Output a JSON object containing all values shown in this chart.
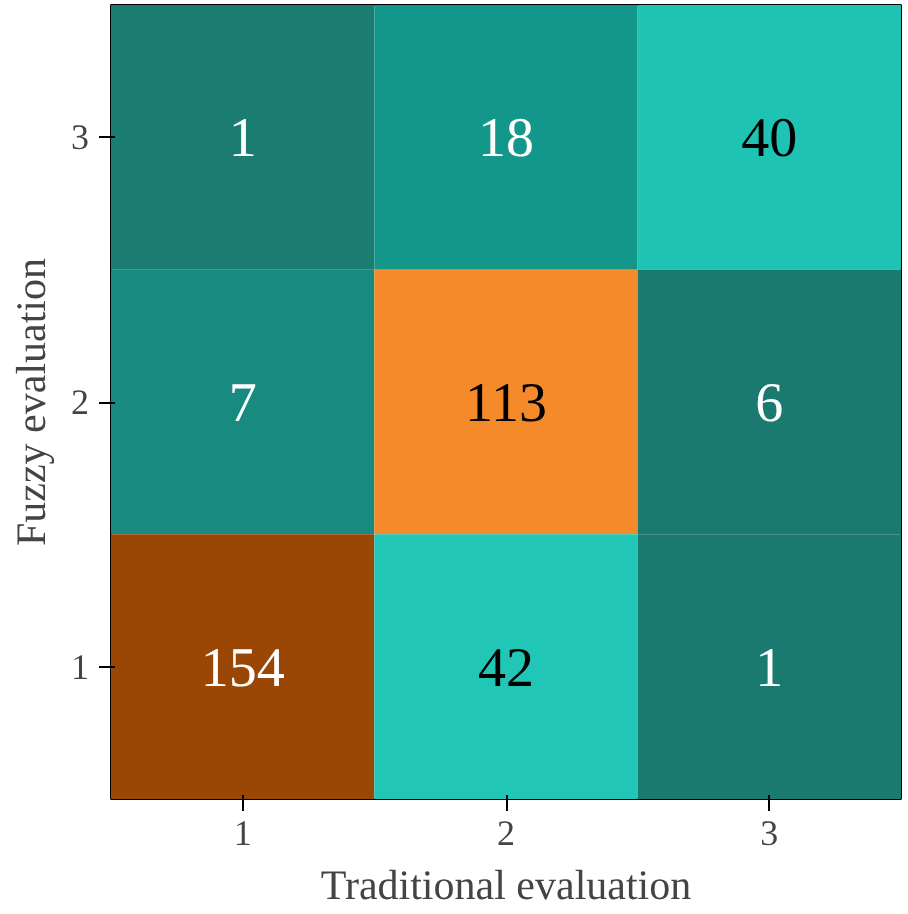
{
  "chart_data": {
    "type": "heatmap",
    "data_labels": true,
    "xlabel": "Traditional evaluation",
    "ylabel": "Fuzzy evaluation",
    "categories": [
      "1",
      "2",
      "3"
    ],
    "y_categories": [
      "3",
      "2",
      "1"
    ],
    "cells": [
      [
        1,
        18,
        40
      ],
      [
        7,
        113,
        6
      ],
      [
        154,
        42,
        1
      ]
    ],
    "colors": [
      [
        "#1b7c72",
        "#14978b",
        "#1fc3b3"
      ],
      [
        "#188a80",
        "#f58a2a",
        "#1a7a70"
      ],
      [
        "#9a4706",
        "#22c6b6",
        "#1a7a70"
      ]
    ]
  }
}
